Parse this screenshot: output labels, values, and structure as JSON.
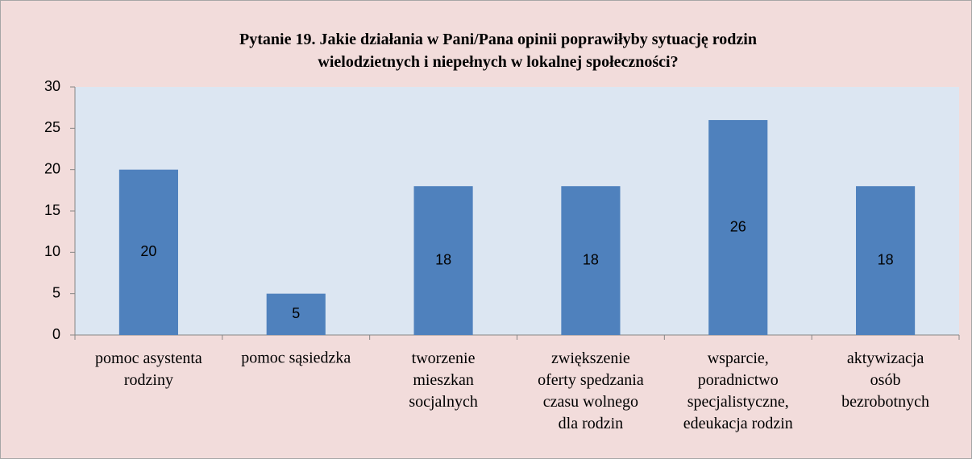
{
  "chart_data": {
    "type": "bar",
    "title": "Pytanie 19. Jakie działania w Pani/Pana opinii poprawiłyby sytuację rodzin\nwielodzietnych i niepełnych w lokalnej społeczności?",
    "categories": [
      "pomoc asystenta\nrodziny",
      "pomoc sąsiedzka",
      "tworzenie\nmieszkan\nsocjalnych",
      "zwiększenie\noferty spedzania\nczasu wolnego\ndla rodzin",
      "wsparcie,\nporadnictwo\nspecjalistyczne,\nedeukacja rodzin",
      "aktywizacja\nosób\nbezrobotnych"
    ],
    "values": [
      20,
      5,
      18,
      18,
      26,
      18
    ],
    "color": "#4f81bd",
    "ylim": [
      0,
      30
    ],
    "yticks": [
      0,
      5,
      10,
      15,
      20,
      25,
      30
    ],
    "grid": false,
    "data_labels": true
  }
}
